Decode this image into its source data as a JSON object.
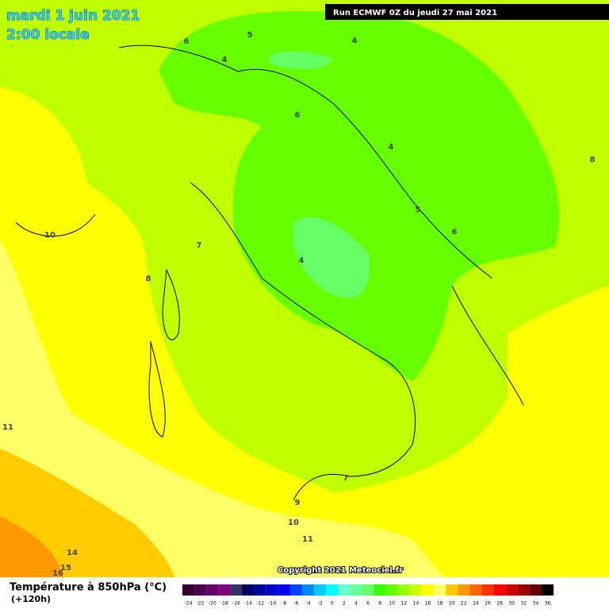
{
  "header": {
    "date": "mardi 1 juin 2021",
    "time": "2:00 locale",
    "run": "Run ECMWF 0Z du jeudi 27 mai 2021"
  },
  "contour_labels": [
    6,
    5,
    4,
    4,
    6,
    4,
    8,
    5,
    6,
    10,
    7,
    4,
    8,
    11,
    7,
    9,
    10,
    11,
    14,
    15,
    16
  ],
  "copyright": "Copyright 2021 Meteociel.fr",
  "footer": {
    "title": "Température à 850hPa (°C)",
    "subtitle": "(+120h)"
  },
  "scale": {
    "labels": [
      -24,
      -22,
      -20,
      -18,
      -16,
      -14,
      -12,
      -10,
      -8,
      -6,
      -4,
      -2,
      0,
      2,
      4,
      6,
      8,
      10,
      12,
      14,
      16,
      18,
      20,
      22,
      24,
      26,
      28,
      30,
      32,
      34,
      36
    ],
    "colors": [
      "#330033",
      "#4d004d",
      "#660066",
      "#800080",
      "#333366",
      "#000066",
      "#000099",
      "#0000cc",
      "#0000ff",
      "#0044ff",
      "#0088ff",
      "#00ccff",
      "#00ffff",
      "#66ffcc",
      "#66ff99",
      "#66ff66",
      "#33ff00",
      "#66ff00",
      "#99ff00",
      "#ccff00",
      "#ffff00",
      "#ffff66",
      "#ffcc00",
      "#ff9900",
      "#ff6600",
      "#ff3300",
      "#ff0000",
      "#cc0000",
      "#990000",
      "#660000",
      "#000000"
    ]
  }
}
